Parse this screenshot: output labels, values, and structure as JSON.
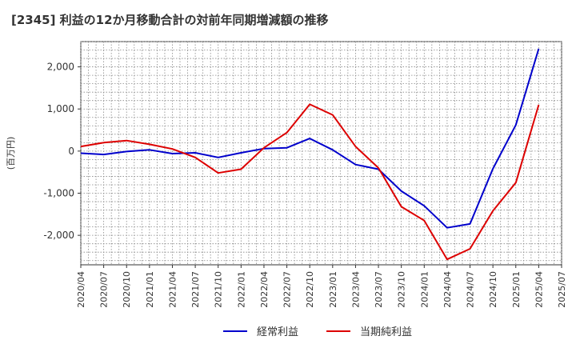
{
  "chart_data": {
    "type": "line",
    "title": "[2345]  利益の12か月移動合計の対前年同期増減額の推移",
    "ylabel": "(百万円)",
    "xlabel": "",
    "ylim": [
      -2700,
      2600
    ],
    "yticks": [
      2000,
      1000,
      0,
      -1000,
      -2000
    ],
    "ytick_labels": [
      "2,000",
      "1,000",
      "0",
      "-1,000",
      "-2,000"
    ],
    "xtick_labels": [
      "2020/04",
      "2020/07",
      "2020/10",
      "2021/01",
      "2021/04",
      "2021/07",
      "2021/10",
      "2022/01",
      "2022/04",
      "2022/07",
      "2022/10",
      "2023/01",
      "2023/04",
      "2023/07",
      "2023/10",
      "2024/01",
      "2024/04",
      "2024/07",
      "2024/10",
      "2025/01",
      "2025/04",
      "2025/07"
    ],
    "grid": true,
    "legend_position": "bottom-center",
    "x": [
      "2020/04",
      "2020/05",
      "2020/06",
      "2020/07",
      "2020/08",
      "2020/09",
      "2020/10",
      "2020/11",
      "2020/12",
      "2021/01",
      "2021/02",
      "2021/03",
      "2021/04",
      "2021/05",
      "2021/06",
      "2021/07",
      "2021/08",
      "2021/09",
      "2021/10",
      "2021/11",
      "2021/12",
      "2022/01",
      "2022/02",
      "2022/03",
      "2022/04",
      "2022/05",
      "2022/06",
      "2022/07",
      "2022/08",
      "2022/09",
      "2022/10",
      "2022/11",
      "2022/12",
      "2023/01",
      "2023/02",
      "2023/03",
      "2023/04",
      "2023/05",
      "2023/06",
      "2023/07",
      "2023/08",
      "2023/09",
      "2023/10",
      "2023/11",
      "2023/12",
      "2024/01",
      "2024/02",
      "2024/03",
      "2024/04",
      "2024/05",
      "2024/06",
      "2024/07",
      "2024/08",
      "2024/09",
      "2024/10",
      "2024/11",
      "2024/12",
      "2025/01",
      "2025/02",
      "2025/03",
      "2025/04"
    ],
    "series": [
      {
        "name": "経常利益",
        "color": "#0000cc",
        "values": [
          -50,
          null,
          null,
          -80,
          null,
          null,
          -10,
          null,
          null,
          30,
          null,
          null,
          -60,
          null,
          null,
          -40,
          null,
          null,
          -150,
          null,
          null,
          -40,
          null,
          null,
          60,
          null,
          null,
          80,
          null,
          null,
          300,
          null,
          null,
          30,
          null,
          null,
          -320,
          null,
          null,
          -430,
          null,
          null,
          -950,
          null,
          null,
          -1300,
          null,
          null,
          -1820,
          null,
          null,
          -1730,
          null,
          null,
          -420,
          null,
          null,
          620,
          null,
          null,
          2430
        ]
      },
      {
        "name": "当期純利益",
        "color": "#dd0000",
        "values": [
          110,
          null,
          null,
          200,
          null,
          null,
          250,
          null,
          null,
          160,
          null,
          null,
          50,
          null,
          null,
          -150,
          null,
          null,
          -520,
          null,
          null,
          -430,
          null,
          null,
          80,
          null,
          null,
          440,
          null,
          null,
          1110,
          null,
          null,
          860,
          null,
          null,
          110,
          null,
          null,
          -400,
          null,
          null,
          -1320,
          null,
          null,
          -1650,
          null,
          null,
          -2570,
          null,
          null,
          -2320,
          null,
          null,
          -1420,
          null,
          null,
          -750,
          null,
          null,
          1100
        ]
      }
    ]
  }
}
